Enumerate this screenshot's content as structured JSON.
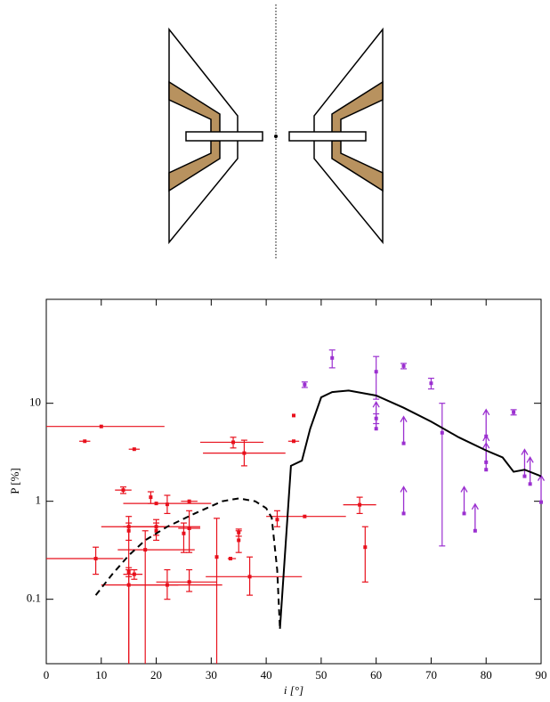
{
  "chart_data": {
    "type": "scatter",
    "xlabel": "i [°]",
    "ylabel": "P [%]",
    "xlim": [
      0,
      90
    ],
    "ylim": [
      0.022,
      115
    ],
    "log_y": true,
    "xticks": [
      0,
      10,
      20,
      30,
      40,
      50,
      60,
      70,
      80,
      90
    ],
    "yticks": [
      0.1,
      1,
      10
    ],
    "series": [
      {
        "type": "scatter",
        "color": "#e8101c",
        "x": [
          10,
          7,
          16,
          14,
          19,
          22,
          26,
          20,
          34,
          36,
          45,
          45,
          47,
          42,
          57,
          58,
          9,
          15,
          15,
          20,
          20,
          25,
          26,
          18,
          15,
          16,
          15,
          22,
          26,
          31,
          37,
          33.5,
          35,
          35
        ],
        "y": [
          5.8,
          4.1,
          3.4,
          1.3,
          1.1,
          0.93,
          1.0,
          0.95,
          4.0,
          3.1,
          4.1,
          7.5,
          0.7,
          0.65,
          0.92,
          0.34,
          0.26,
          0.55,
          0.5,
          0.55,
          0.5,
          0.47,
          0.53,
          0.32,
          0.19,
          0.18,
          0.14,
          0.14,
          0.15,
          0.27,
          0.17,
          0.26,
          0.48,
          0.4
        ],
        "x_low": [
          0,
          6,
          15,
          12.5,
          null,
          null,
          24.5,
          14,
          28,
          28.5,
          44,
          null,
          40,
          null,
          54,
          null,
          0,
          10,
          null,
          14,
          null,
          null,
          24,
          13,
          null,
          14,
          10,
          15,
          20,
          null,
          29,
          33,
          null,
          null
        ],
        "x_high": [
          21.5,
          8,
          17,
          15.5,
          null,
          null,
          27.5,
          30,
          39.5,
          43.5,
          46,
          null,
          54.5,
          null,
          60,
          null,
          14,
          22,
          null,
          28,
          null,
          null,
          28,
          27,
          null,
          17.5,
          24,
          32,
          31,
          null,
          46.5,
          34.5,
          null,
          null
        ],
        "y_low": [
          null,
          null,
          null,
          1.2,
          0.95,
          0.75,
          null,
          null,
          3.5,
          2.3,
          null,
          null,
          null,
          0.55,
          0.75,
          0.15,
          0.18,
          0.022,
          0.4,
          0.45,
          0.4,
          0.3,
          0.3,
          0.022,
          0.17,
          0.16,
          0.022,
          0.1,
          0.12,
          0.022,
          0.11,
          null,
          0.44,
          0.3
        ],
        "y_high": [
          null,
          null,
          null,
          1.4,
          1.25,
          1.15,
          null,
          null,
          4.5,
          4.2,
          null,
          null,
          null,
          0.8,
          1.1,
          0.55,
          0.34,
          0.7,
          0.6,
          0.65,
          0.6,
          0.6,
          0.8,
          0.5,
          0.21,
          0.2,
          0.2,
          0.2,
          0.2,
          0.67,
          0.27,
          null,
          0.52,
          0.5
        ]
      },
      {
        "type": "scatter",
        "color": "#9b30d0",
        "x": [
          47,
          52,
          60,
          60,
          65,
          70,
          72,
          85
        ],
        "y": [
          15.5,
          29,
          21,
          7,
          24,
          16,
          5,
          8.1
        ],
        "y_low": [
          14.5,
          23,
          11,
          6.2,
          22.5,
          14,
          0.35,
          7.6
        ],
        "y_high": [
          16.5,
          35,
          30,
          7.8,
          25.5,
          18,
          10,
          8.6
        ]
      },
      {
        "type": "scatter",
        "color": "#9b30d0",
        "lower_limit": true,
        "x": [
          60,
          65,
          65,
          76,
          78,
          80,
          80,
          80,
          87,
          88,
          90
        ],
        "y": [
          5.5,
          3.9,
          0.75,
          0.75,
          0.5,
          4.6,
          2.5,
          2.1,
          1.8,
          1.5,
          0.98
        ]
      },
      {
        "type": "line",
        "color": "#000000",
        "linestyle": "solid",
        "x": [
          42.5,
          44.5,
          46.5,
          48,
          50,
          52,
          55,
          60,
          65,
          70,
          75,
          80,
          83,
          85,
          87,
          90
        ],
        "y": [
          0.05,
          2.3,
          2.6,
          5.5,
          11.5,
          13,
          13.5,
          12,
          9,
          6.5,
          4.5,
          3.3,
          2.8,
          2.0,
          2.1,
          1.8
        ]
      },
      {
        "type": "line",
        "color": "#000000",
        "linestyle": "dashed",
        "x": [
          9,
          12,
          15,
          18,
          22,
          27,
          32,
          35,
          38,
          40,
          41,
          42,
          42.5
        ],
        "y": [
          0.11,
          0.18,
          0.28,
          0.4,
          0.55,
          0.75,
          1.0,
          1.07,
          1.0,
          0.85,
          0.68,
          0.2,
          0.05
        ]
      }
    ]
  }
}
